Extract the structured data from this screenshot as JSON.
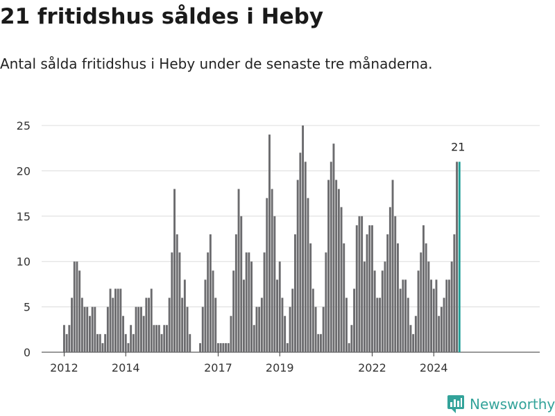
{
  "title": "21 fritidshus såldes i Heby",
  "subtitle": "Antal sålda fritidshus i Heby under de senaste tre månaderna.",
  "brand": {
    "name": "Newsworthy",
    "icon": "newsworthy-logo-icon",
    "color": "#33a39a"
  },
  "chart_data": {
    "type": "bar",
    "title": "",
    "xlabel": "",
    "ylabel": "",
    "ylim": [
      0,
      25
    ],
    "yticks": [
      0,
      5,
      10,
      15,
      20,
      25
    ],
    "grid": true,
    "x_tick_labels": [
      "2012",
      "2014",
      "2017",
      "2019",
      "2022",
      "2024"
    ],
    "x_tick_index": [
      0,
      24,
      60,
      84,
      120,
      144
    ],
    "bar_color": "#6b6b6e",
    "highlight_color": "#1f9e96",
    "highlight_label": "21",
    "values": [
      3,
      2,
      3,
      6,
      10,
      10,
      9,
      6,
      5,
      5,
      4,
      5,
      5,
      2,
      2,
      1,
      2,
      5,
      7,
      6,
      7,
      7,
      7,
      4,
      2,
      1,
      3,
      2,
      5,
      5,
      5,
      4,
      6,
      6,
      7,
      3,
      3,
      3,
      2,
      3,
      3,
      6,
      11,
      18,
      13,
      11,
      6,
      8,
      5,
      2,
      0,
      0,
      0,
      1,
      5,
      8,
      11,
      13,
      9,
      6,
      1,
      1,
      1,
      1,
      1,
      4,
      9,
      13,
      18,
      15,
      8,
      11,
      11,
      10,
      3,
      5,
      5,
      6,
      11,
      17,
      24,
      18,
      15,
      8,
      10,
      6,
      4,
      1,
      5,
      7,
      13,
      19,
      22,
      25,
      21,
      17,
      12,
      7,
      5,
      2,
      2,
      5,
      11,
      19,
      21,
      23,
      19,
      18,
      16,
      12,
      6,
      1,
      3,
      7,
      14,
      15,
      15,
      10,
      13,
      14,
      14,
      9,
      6,
      6,
      9,
      10,
      13,
      16,
      19,
      15,
      12,
      7,
      8,
      8,
      6,
      3,
      2,
      4,
      9,
      11,
      14,
      12,
      10,
      8,
      7,
      8,
      4,
      5,
      6,
      8,
      8,
      10,
      13,
      21,
      21
    ]
  }
}
